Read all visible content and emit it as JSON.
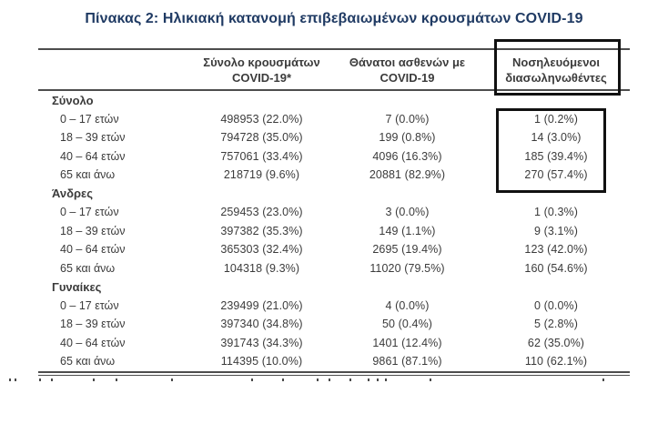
{
  "title": "Πίνακας 2: Ηλικιακή κατανομή επιβεβαιωμένων κρουσμάτων COVID-19",
  "table": {
    "columns": [
      {
        "line1": "Σύνολο κρουσμάτων",
        "line2": "COVID-19*",
        "highlighted": false
      },
      {
        "line1": "Θάνατοι ασθενών με",
        "line2": "COVID-19",
        "highlighted": false
      },
      {
        "line1": "Νοσηλευόμενοι",
        "line2": "διασωληνωθέντες",
        "highlighted": true
      }
    ],
    "sections": [
      {
        "label": "Σύνολο",
        "rows": [
          {
            "age": "0 – 17 ετών",
            "cases": "498953 (22.0%)",
            "deaths": "7 (0.0%)",
            "intubated": "1 (0.2%)"
          },
          {
            "age": "18 – 39 ετών",
            "cases": "794728 (35.0%)",
            "deaths": "199 (0.8%)",
            "intubated": "14 (3.0%)"
          },
          {
            "age": "40 – 64 ετών",
            "cases": "757061 (33.4%)",
            "deaths": "4096 (16.3%)",
            "intubated": "185 (39.4%)"
          },
          {
            "age": "65 και άνω",
            "cases": "218719 (9.6%)",
            "deaths": "20881 (82.9%)",
            "intubated": "270 (57.4%)"
          }
        ]
      },
      {
        "label": "Άνδρες",
        "rows": [
          {
            "age": "0 – 17 ετών",
            "cases": "259453 (23.0%)",
            "deaths": "3 (0.0%)",
            "intubated": "1 (0.3%)"
          },
          {
            "age": "18 – 39 ετών",
            "cases": "397382 (35.3%)",
            "deaths": "149 (1.1%)",
            "intubated": "9 (3.1%)"
          },
          {
            "age": "40 – 64 ετών",
            "cases": "365303 (32.4%)",
            "deaths": "2695 (19.4%)",
            "intubated": "123 (42.0%)"
          },
          {
            "age": "65 και άνω",
            "cases": "104318 (9.3%)",
            "deaths": "11020 (79.5%)",
            "intubated": "160 (54.6%)"
          }
        ]
      },
      {
        "label": "Γυναίκες",
        "rows": [
          {
            "age": "0 – 17 ετών",
            "cases": "239499 (21.0%)",
            "deaths": "4 (0.0%)",
            "intubated": "0 (0.0%)"
          },
          {
            "age": "18 – 39 ετών",
            "cases": "397340 (34.8%)",
            "deaths": "50 (0.4%)",
            "intubated": "5 (2.8%)"
          },
          {
            "age": "40 – 64 ετών",
            "cases": "391743 (34.3%)",
            "deaths": "1401 (12.4%)",
            "intubated": "62 (35.0%)"
          },
          {
            "age": "65 και άνω",
            "cases": "114395 (10.0%)",
            "deaths": "9861 (87.1%)",
            "intubated": "110 (62.1%)"
          }
        ]
      }
    ]
  },
  "colors": {
    "title": "#1F3A63",
    "body_text": "#3B3B3B",
    "table_border": "#4D4D4D",
    "highlight_box": "#111111",
    "background": "#FFFFFF"
  }
}
